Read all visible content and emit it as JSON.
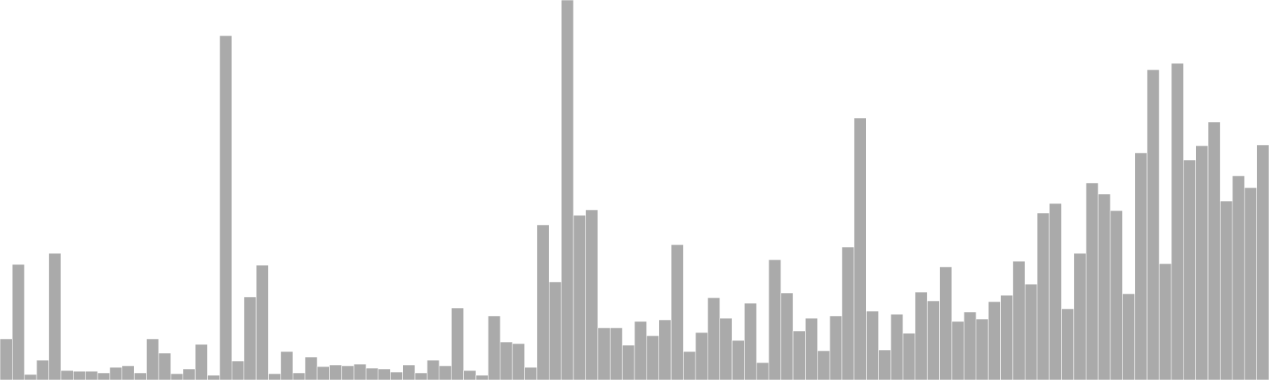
{
  "chart_data": {
    "type": "bar",
    "title": "",
    "xlabel": "",
    "ylabel": "",
    "grid": false,
    "legend": "none",
    "ylim": [
      0,
      480
    ],
    "bar_color": "#aaaaaa",
    "background_color": "#ffffff",
    "values": [
      52,
      146,
      7,
      25,
      160,
      12,
      11,
      11,
      9,
      16,
      18,
      9,
      52,
      34,
      8,
      14,
      45,
      6,
      435,
      24,
      105,
      145,
      8,
      36,
      9,
      29,
      17,
      19,
      18,
      20,
      15,
      14,
      10,
      19,
      9,
      25,
      18,
      91,
      12,
      6,
      81,
      48,
      46,
      16,
      196,
      124,
      480,
      208,
      215,
      66,
      66,
      44,
      74,
      56,
      76,
      171,
      36,
      60,
      104,
      78,
      50,
      97,
      22,
      152,
      110,
      62,
      78,
      37,
      81,
      168,
      331,
      87,
      38,
      83,
      59,
      111,
      100,
      143,
      74,
      86,
      77,
      99,
      107,
      150,
      121,
      211,
      223,
      90,
      160,
      249,
      235,
      214,
      109,
      287,
      392,
      147,
      400,
      278,
      296,
      326,
      226,
      258,
      243,
      297
    ]
  }
}
